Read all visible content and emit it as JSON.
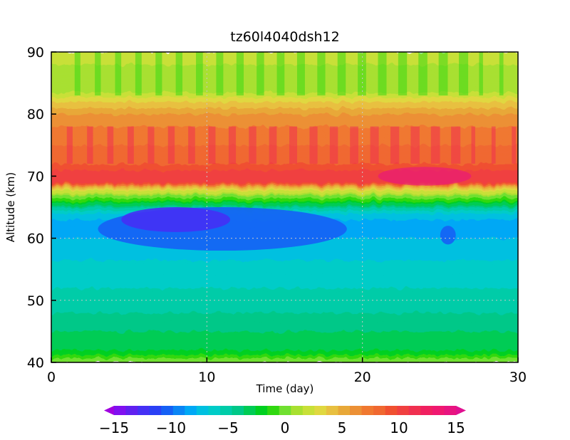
{
  "chart_data": {
    "type": "heatmap",
    "title": "tz60l4040dsh12",
    "xlabel": "Time (day)",
    "ylabel": "Altitude (km)",
    "xlim": [
      0,
      30
    ],
    "ylim": [
      40,
      90
    ],
    "xticks": [
      0,
      10,
      20,
      30
    ],
    "yticks": [
      40,
      50,
      60,
      70,
      80,
      90
    ],
    "grid": "dotted, at x=10,20 and y=50,60",
    "colorbar": {
      "orientation": "horizontal",
      "position": "bottom",
      "min": -15,
      "max": 15,
      "step": 1,
      "ticks": [
        -15,
        -10,
        -5,
        0,
        5,
        10,
        15
      ],
      "tick_labels": [
        "−15",
        "−10",
        "−5",
        "0",
        "5",
        "10",
        "15"
      ],
      "colors": [
        "#a000e0",
        "#8010f0",
        "#6020f0",
        "#4530f5",
        "#2a40f5",
        "#1560f5",
        "#0a85f5",
        "#00a8f5",
        "#00c0e0",
        "#00ccc8",
        "#00cca8",
        "#00c888",
        "#00cc55",
        "#00d020",
        "#30d810",
        "#70e030",
        "#a8e030",
        "#c8e038",
        "#e0d840",
        "#e8c040",
        "#e8a838",
        "#ec9035",
        "#f07830",
        "#f06830",
        "#f05030",
        "#f04040",
        "#f03050",
        "#f02060",
        "#f01870",
        "#e81480",
        "#e01090"
      ]
    },
    "profile": {
      "description_note": "time-mean field value vs altitude (km), read from colour contours",
      "altitude": [
        40,
        41,
        42,
        45,
        48,
        50,
        52,
        55,
        58,
        60,
        62,
        64,
        65,
        66,
        67,
        67.5,
        68,
        68.5,
        69,
        70,
        72,
        75,
        78,
        80,
        82,
        84,
        86,
        88,
        90
      ],
      "value": [
        0,
        -1.5,
        -3,
        -4,
        -5,
        -5.5,
        -6,
        -6.5,
        -7.5,
        -8,
        -9,
        -7,
        -5,
        -2,
        0,
        1.5,
        3,
        5,
        9,
        10,
        8,
        7,
        6,
        5,
        3,
        0.5,
        0,
        1,
        2
      ]
    }
  }
}
